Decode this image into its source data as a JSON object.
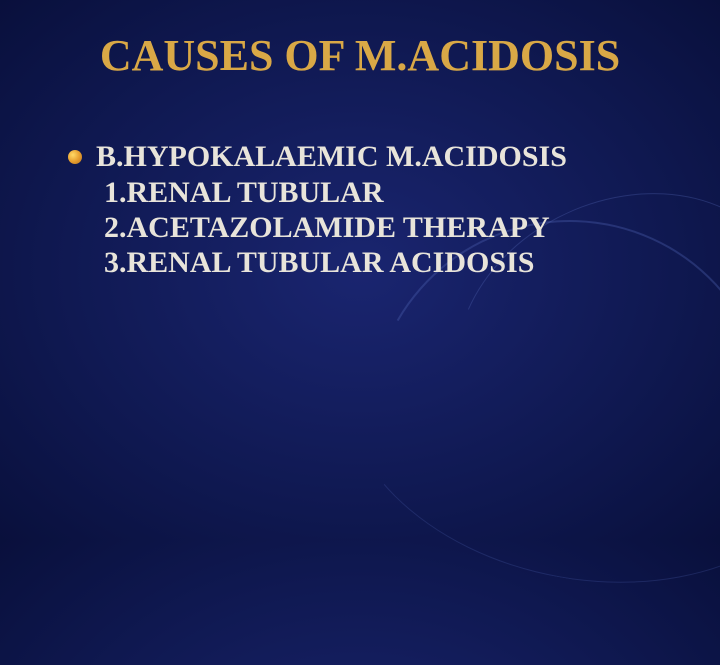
{
  "slide": {
    "title": "CAUSES OF M.ACIDOSIS",
    "heading": "B.HYPOKALAEMIC M.ACIDOSIS",
    "items": [
      "1.RENAL TUBULAR",
      "2.ACETAZOLAMIDE THERAPY",
      "3.RENAL TUBULAR ACIDOSIS"
    ],
    "style": {
      "title_color": "#d9a846",
      "title_fontsize": 44,
      "body_color": "#e8e4da",
      "body_fontsize": 30,
      "bullet_color_start": "#ffd966",
      "bullet_color_end": "#b87420",
      "background_center": "#1a2570",
      "background_edge": "#020618",
      "swoosh_color": "rgba(80,100,180,0.35)"
    }
  }
}
